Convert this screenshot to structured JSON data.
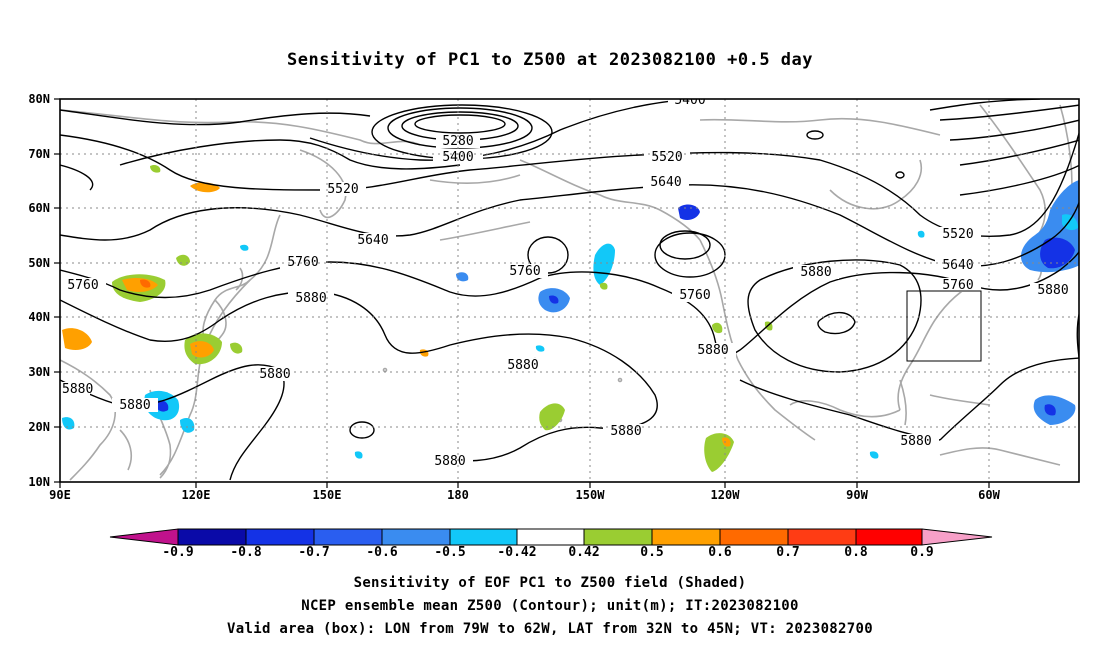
{
  "title": "Sensitivity of PC1 to Z500 at 2023082100 +0.5 day",
  "latitude_labels": [
    "80N",
    "70N",
    "60N",
    "50N",
    "40N",
    "30N",
    "20N",
    "10N"
  ],
  "longitude_labels": [
    "90E",
    "120E",
    "150E",
    "180",
    "150W",
    "120W",
    "90W",
    "60W"
  ],
  "contour_labels": [
    "5400",
    "5280",
    "5400",
    "5520",
    "5520",
    "5640",
    "5640",
    "5760",
    "5760",
    "5880",
    "5880",
    "5520",
    "5640",
    "5760",
    "5880",
    "5760",
    "5760",
    "5880",
    "5880",
    "5880",
    "5880",
    "5880",
    "5880",
    "5880"
  ],
  "colorbar": {
    "labels": [
      "-0.9",
      "-0.8",
      "-0.7",
      "-0.6",
      "-0.5",
      "-0.42",
      "0.42",
      "0.5",
      "0.6",
      "0.7",
      "0.8",
      "0.9"
    ],
    "colors": [
      "#c0128c",
      "#0a0aa8",
      "#1432e6",
      "#2a5ef0",
      "#3a8cf0",
      "#12c8f8",
      "#ffffff",
      "#9acd32",
      "#ffa000",
      "#ff6a00",
      "#ff3c14",
      "#ff0000",
      "#f7a0c8"
    ]
  },
  "valid_box": {
    "lon_west": "79W",
    "lon_east": "62W",
    "lat_south": "32N",
    "lat_north": "45N"
  },
  "footer": {
    "line1": "Sensitivity of EOF PC1 to Z500 field (Shaded)",
    "line2": "NCEP ensemble mean Z500 (Contour); unit(m); IT:2023082100",
    "line3": "Valid area (box): LON from 79W to 62W, LAT from 32N to 45N; VT: 2023082700"
  }
}
